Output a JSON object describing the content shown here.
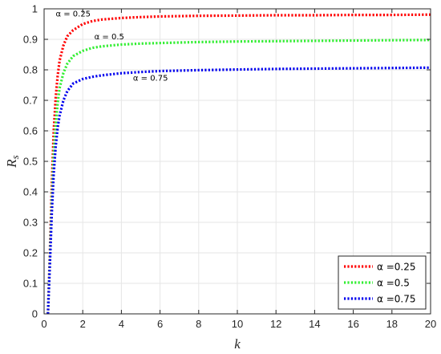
{
  "chart_data": {
    "type": "line",
    "xlabel": "k",
    "ylabel": "Rs",
    "xlim": [
      0,
      20
    ],
    "ylim": [
      0,
      1
    ],
    "x_ticks": [
      0,
      2,
      4,
      6,
      8,
      10,
      12,
      14,
      16,
      18,
      20
    ],
    "y_ticks": [
      0,
      0.1,
      0.2,
      0.3,
      0.4,
      0.5,
      0.6,
      0.7,
      0.8,
      0.9,
      1
    ],
    "grid": true,
    "legend_position": "bottom-right",
    "x": [
      0.2,
      0.25,
      0.3,
      0.4,
      0.5,
      0.6,
      0.7,
      0.8,
      1.0,
      1.2,
      1.5,
      2,
      2.5,
      3,
      4,
      5,
      6,
      8,
      10,
      12,
      14,
      16,
      18,
      20
    ],
    "series": [
      {
        "name": "α =0.25",
        "color": "#ff0000",
        "values": [
          0.0,
          0.1,
          0.2,
          0.42,
          0.6,
          0.71,
          0.78,
          0.83,
          0.88,
          0.91,
          0.93,
          0.95,
          0.96,
          0.965,
          0.97,
          0.973,
          0.975,
          0.977,
          0.978,
          0.979,
          0.979,
          0.98,
          0.98,
          0.981
        ]
      },
      {
        "name": "α =0.5",
        "color": "#33ee33",
        "values": [
          0.0,
          0.09,
          0.18,
          0.37,
          0.52,
          0.62,
          0.69,
          0.74,
          0.79,
          0.82,
          0.845,
          0.862,
          0.872,
          0.877,
          0.883,
          0.886,
          0.888,
          0.891,
          0.893,
          0.894,
          0.895,
          0.896,
          0.897,
          0.898
        ]
      },
      {
        "name": "α =0.75",
        "color": "#0000ee",
        "values": [
          0.0,
          0.08,
          0.16,
          0.33,
          0.46,
          0.55,
          0.61,
          0.65,
          0.7,
          0.73,
          0.755,
          0.77,
          0.777,
          0.782,
          0.789,
          0.793,
          0.796,
          0.799,
          0.801,
          0.803,
          0.804,
          0.805,
          0.806,
          0.807
        ]
      }
    ],
    "annotations": [
      {
        "text": "α = 0.25",
        "x": 0.6,
        "y": 0.975,
        "series": 0
      },
      {
        "text": "α = 0.5",
        "x": 2.6,
        "y": 0.9,
        "series": 1
      },
      {
        "text": "α = 0.75",
        "x": 4.6,
        "y": 0.765,
        "series": 2
      }
    ]
  }
}
